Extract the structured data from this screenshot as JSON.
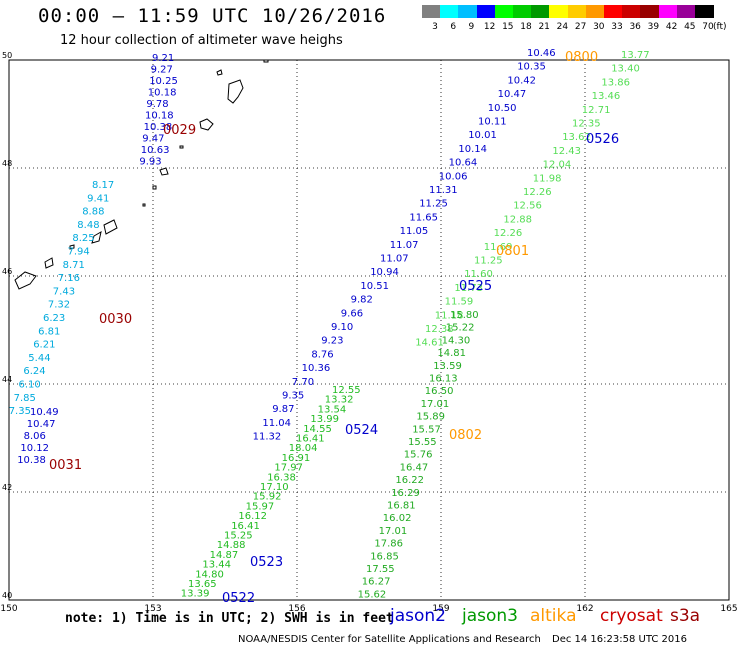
{
  "title": "00:00 – 11:59 UTC 10/26/2016",
  "subtitle": "12 hour collection of altimeter wave heighs",
  "legend": {
    "unit": "(ft)",
    "colors": [
      "#808080",
      "#00ffff",
      "#00bfff",
      "#0000ff",
      "#00ff00",
      "#00cc00",
      "#009900",
      "#ffff00",
      "#ffcc00",
      "#ff9900",
      "#ff0000",
      "#cc0000",
      "#990000",
      "#ff00ff",
      "#990099",
      "#000000"
    ],
    "labels": [
      "3",
      "6",
      "9",
      "12",
      "15",
      "18",
      "21",
      "24",
      "27",
      "30",
      "33",
      "36",
      "39",
      "42",
      "45",
      "70"
    ]
  },
  "map": {
    "lon_range": [
      150,
      165
    ],
    "lat_range": [
      40,
      50
    ],
    "lon_ticks": [
      "150",
      "153",
      "156",
      "159",
      "162",
      "165"
    ],
    "lat_ticks": [
      "50",
      "48",
      "46",
      "44",
      "42",
      "40"
    ]
  },
  "tracks": [
    {
      "color": "#0000cc",
      "labels": [
        "9.21",
        "9.27",
        "10.25",
        "10.18",
        "9.78",
        "10.18",
        "10.38",
        "9.47",
        "10.63",
        "9.93"
      ]
    },
    {
      "color": "#00aadd",
      "labels": [
        "8.17",
        "9.41",
        "8.88",
        "8.48",
        "8.25",
        "7.94",
        "8.71",
        "7.16",
        "7.43",
        "7.32",
        "6.23",
        "6.81",
        "6.21",
        "5.44",
        "6.24",
        "6.10",
        "7.85",
        "7.35"
      ]
    },
    {
      "color": "#0000cc",
      "labels": [
        "10.49",
        "10.47",
        "8.06",
        "10.12",
        "10.38"
      ]
    },
    {
      "color": "#0000cc",
      "labels": [
        "10.46",
        "10.35",
        "10.42",
        "10.47",
        "10.50",
        "10.11",
        "10.01",
        "10.14",
        "10.64",
        "10.06",
        "11.31",
        "11.25",
        "11.65",
        "11.05",
        "11.07",
        "11.07",
        "10.94",
        "10.51",
        "9.82",
        "9.66",
        "9.10",
        "9.23",
        "8.76",
        "10.36",
        "7.70",
        "9.35",
        "9.87",
        "11.04",
        "11.32"
      ]
    },
    {
      "color": "#22bb22",
      "labels": [
        "12.55",
        "13.32",
        "13.54",
        "13.99",
        "14.55",
        "16.41",
        "18.04",
        "16.91",
        "17.97",
        "16.38",
        "17.10",
        "15.92",
        "15.97",
        "16.12",
        "16.41",
        "15.25",
        "14.88",
        "14.87",
        "13.44",
        "14.80",
        "13.65",
        "13.39"
      ]
    },
    {
      "color": "#55dd55",
      "labels": [
        "13.77",
        "13.40",
        "13.86",
        "13.46",
        "12.71",
        "12.35",
        "13.62",
        "12.43",
        "12.04",
        "11.98",
        "12.26",
        "12.56",
        "12.88",
        "12.26",
        "11.69",
        "11.25",
        "11.60",
        "11.73",
        "11.59",
        "11.18",
        "12.38",
        "14.61"
      ]
    },
    {
      "color": "#22aa22",
      "labels": [
        "15.80",
        "15.22",
        "14.30",
        "14.81",
        "13.59",
        "16.13",
        "16.50",
        "17.01",
        "15.89",
        "15.57",
        "15.55",
        "15.76",
        "16.47",
        "16.22",
        "16.29",
        "16.81",
        "16.02",
        "17.01",
        "17.86",
        "16.85",
        "17.55",
        "16.27",
        "15.62"
      ]
    }
  ],
  "time_labels": [
    {
      "text": "0029",
      "color": "#990000"
    },
    {
      "text": "0030",
      "color": "#990000"
    },
    {
      "text": "0031",
      "color": "#990000"
    },
    {
      "text": "0800",
      "color": "#ff9900"
    },
    {
      "text": "0526",
      "color": "#0000cc"
    },
    {
      "text": "0801",
      "color": "#ff9900"
    },
    {
      "text": "0525",
      "color": "#0000cc"
    },
    {
      "text": "0524",
      "color": "#0000cc"
    },
    {
      "text": "0802",
      "color": "#ff9900"
    },
    {
      "text": "0523",
      "color": "#0000cc"
    },
    {
      "text": "0522",
      "color": "#0000cc"
    }
  ],
  "footer": {
    "note": "note: 1) Time is in UTC; 2) SWH is in feet",
    "satellites": [
      {
        "name": "jason2",
        "color": "#0000cc"
      },
      {
        "name": "jason3",
        "color": "#009900"
      },
      {
        "name": "altika",
        "color": "#ff9900"
      },
      {
        "name": "cryosat",
        "color": "#cc0000"
      },
      {
        "name": "s3a",
        "color": "#990000"
      }
    ],
    "credit": "NOAA/NESDIS Center for Satellite Applications and Research",
    "timestamp": "Dec 14 16:23:58 UTC 2016"
  }
}
